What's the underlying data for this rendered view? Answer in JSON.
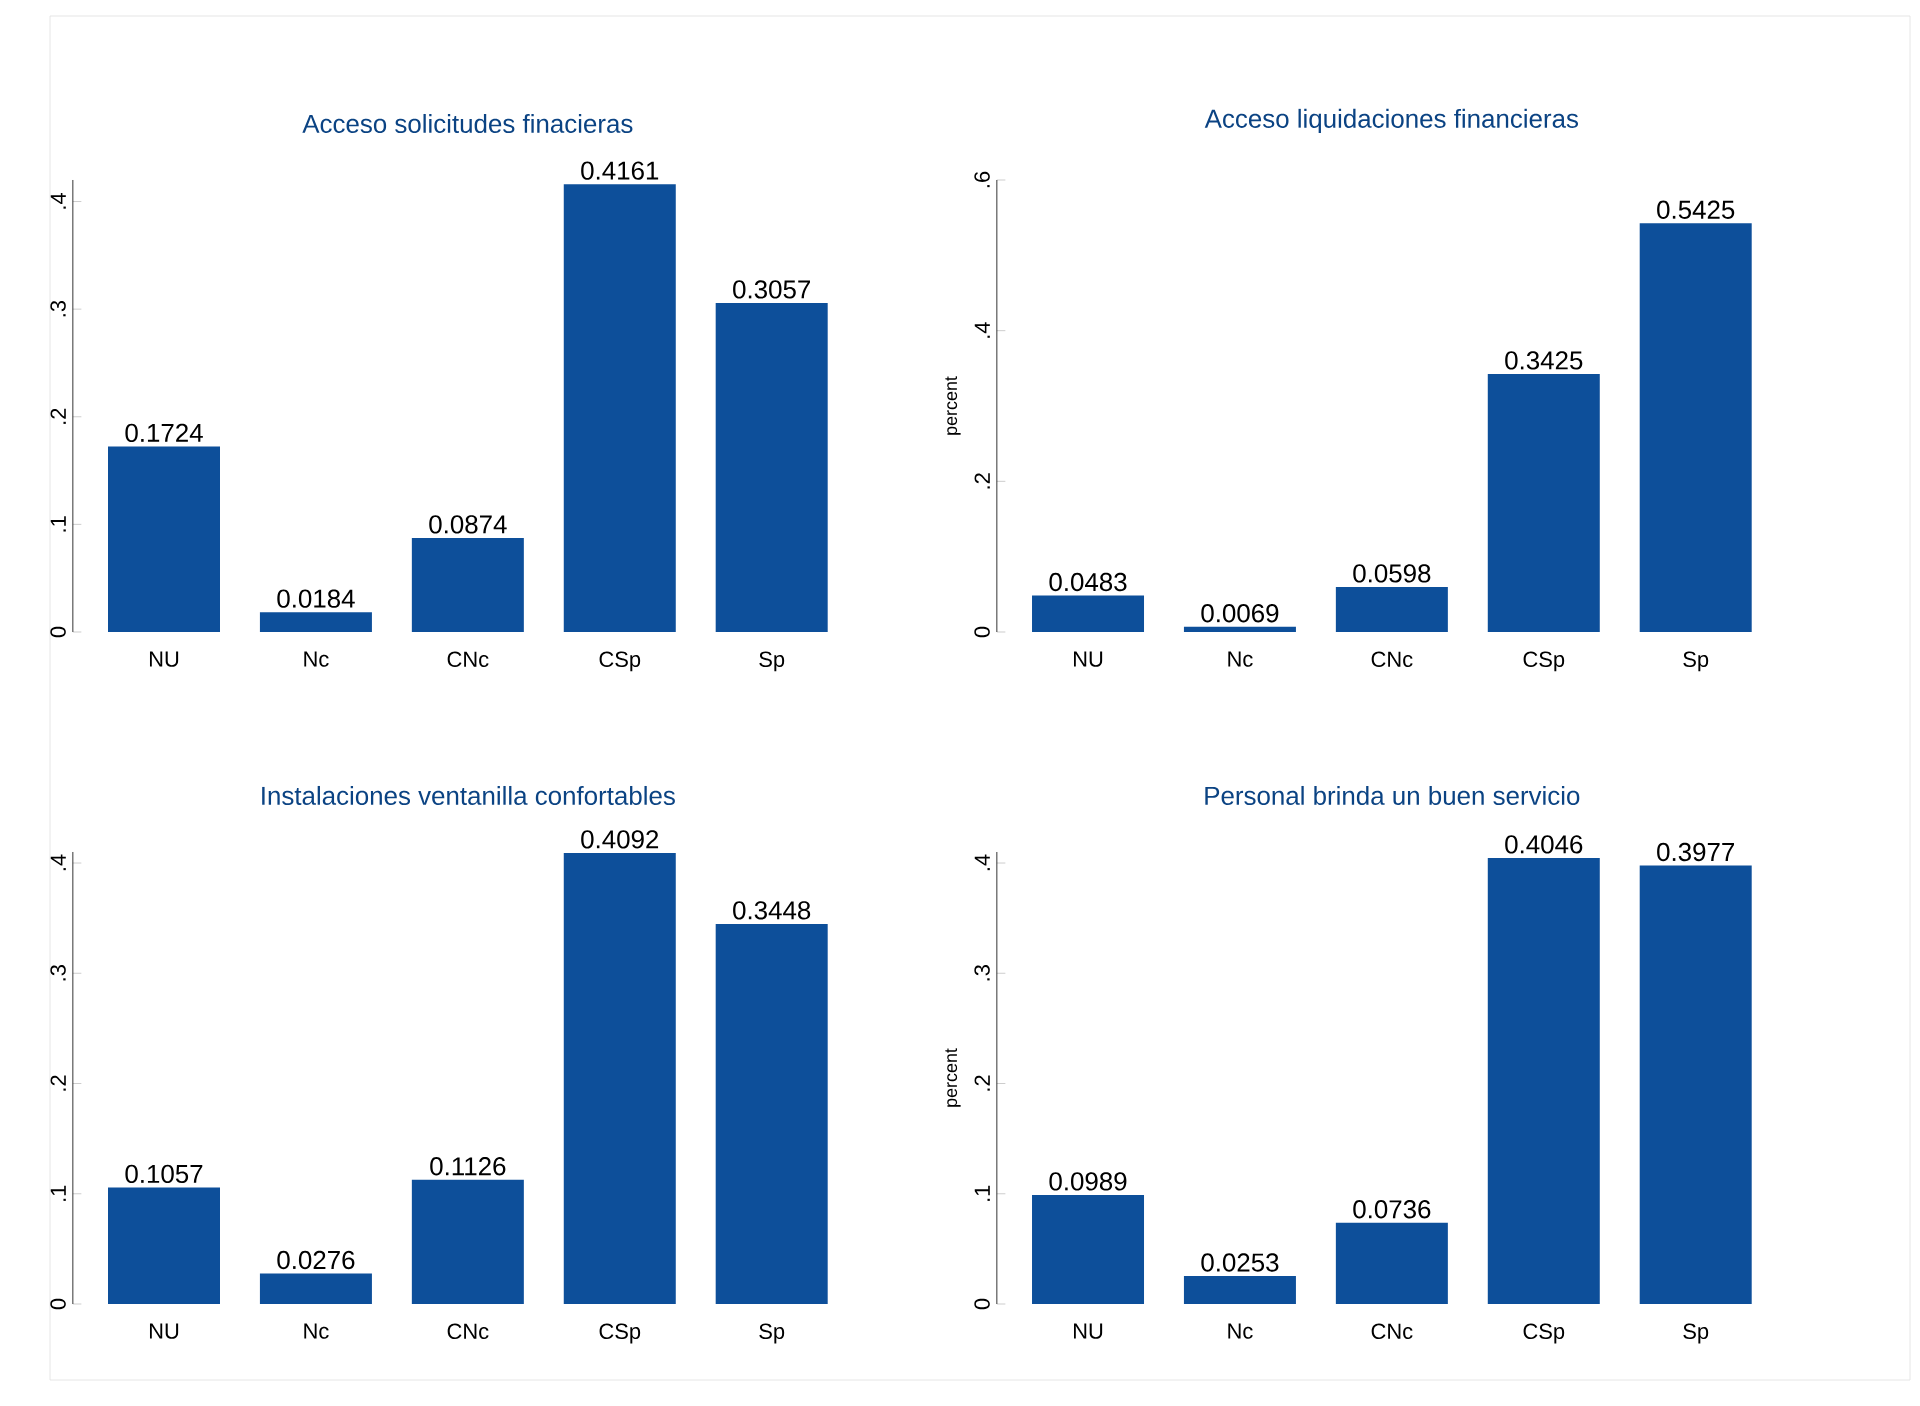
{
  "chart_data": [
    {
      "type": "bar",
      "title": "Acceso solicitudes finacieras",
      "categories": [
        "NU",
        "Nc",
        "CNc",
        "CSp",
        "Sp"
      ],
      "values": [
        0.1724,
        0.0184,
        0.0874,
        0.4161,
        0.3057
      ],
      "color": "#0d4f9a",
      "ylim": [
        0,
        0.42
      ],
      "yticks": [
        0,
        {
          "value": 0.1,
          "label": ".1"
        },
        {
          "value": 0.2,
          "label": ".2"
        },
        {
          "value": 0.3,
          "label": ".3"
        },
        {
          "value": 0.4,
          "label": ".4"
        }
      ],
      "data_labels": true
    },
    {
      "type": "bar",
      "title": "Acceso liquidaciones financieras",
      "ylabel": "percent",
      "categories": [
        "NU",
        "Nc",
        "CNc",
        "CSp",
        "Sp"
      ],
      "values": [
        0.0483,
        0.0069,
        0.0598,
        0.3425,
        0.5425
      ],
      "color": "#0d4f9a",
      "ylim": [
        0,
        0.6
      ],
      "yticks": [
        0,
        {
          "value": 0.2,
          "label": ".2"
        },
        {
          "value": 0.4,
          "label": ".4"
        },
        {
          "value": 0.6,
          "label": ".6"
        }
      ],
      "data_labels": true
    },
    {
      "type": "bar",
      "title": "Instalaciones ventanilla confortables",
      "categories": [
        "NU",
        "Nc",
        "CNc",
        "CSp",
        "Sp"
      ],
      "values": [
        0.1057,
        0.0276,
        0.1126,
        0.4092,
        0.3448
      ],
      "color": "#0d4f9a",
      "ylim": [
        0,
        0.41
      ],
      "yticks": [
        0,
        {
          "value": 0.1,
          "label": ".1"
        },
        {
          "value": 0.2,
          "label": ".2"
        },
        {
          "value": 0.3,
          "label": ".3"
        },
        {
          "value": 0.4,
          "label": ".4"
        }
      ],
      "data_labels": true
    },
    {
      "type": "bar",
      "title": "Personal brinda un buen servicio",
      "ylabel": "percent",
      "categories": [
        "NU",
        "Nc",
        "CNc",
        "CSp",
        "Sp"
      ],
      "values": [
        0.0989,
        0.0253,
        0.0736,
        0.4046,
        0.3977
      ],
      "color": "#0d4f9a",
      "ylim": [
        0,
        0.41
      ],
      "yticks": [
        0,
        {
          "value": 0.1,
          "label": ".1"
        },
        {
          "value": 0.2,
          "label": ".2"
        },
        {
          "value": 0.3,
          "label": ".3"
        },
        {
          "value": 0.4,
          "label": ".4"
        }
      ],
      "data_labels": true
    }
  ]
}
